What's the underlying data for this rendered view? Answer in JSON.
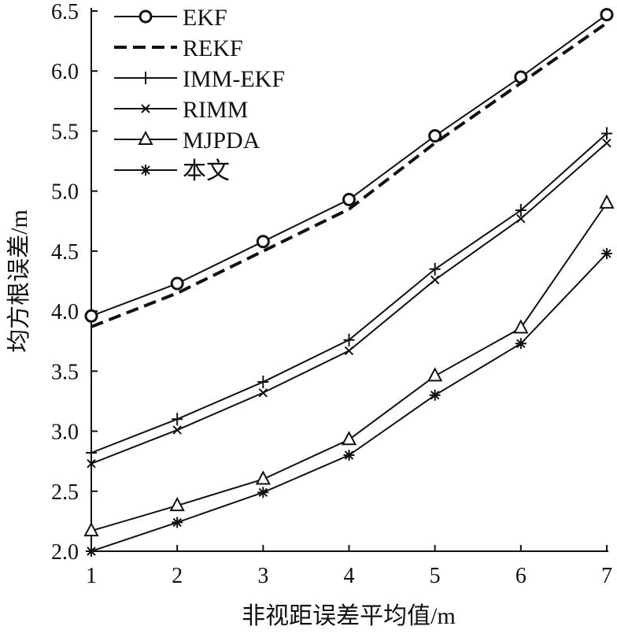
{
  "chart_data": {
    "type": "line",
    "title": "",
    "xlabel": "非视距误差平均值/m",
    "ylabel": "均方根误差/m",
    "x": [
      1,
      2,
      3,
      4,
      5,
      6,
      7
    ],
    "xlim": [
      1,
      7
    ],
    "ylim": [
      2.0,
      6.5
    ],
    "xticks": [
      "1",
      "2",
      "3",
      "4",
      "5",
      "6",
      "7"
    ],
    "yticks": [
      "2.0",
      "2.5",
      "3.0",
      "3.5",
      "4.0",
      "4.5",
      "5.0",
      "5.5",
      "6.0",
      "6.5"
    ],
    "grid": false,
    "legend_position": "top-left",
    "series": [
      {
        "name": "EKF",
        "marker": "circle",
        "dash": false,
        "values": [
          3.96,
          4.23,
          4.58,
          4.93,
          5.46,
          5.95,
          6.47
        ]
      },
      {
        "name": "REKF",
        "marker": "none",
        "dash": true,
        "values": [
          3.87,
          4.15,
          4.5,
          4.85,
          5.4,
          5.9,
          6.4
        ]
      },
      {
        "name": "IMM-EKF",
        "marker": "plus",
        "dash": false,
        "values": [
          2.82,
          3.1,
          3.41,
          3.76,
          4.35,
          4.84,
          5.48
        ]
      },
      {
        "name": "RIMM",
        "marker": "x",
        "dash": false,
        "values": [
          2.73,
          3.01,
          3.32,
          3.67,
          4.26,
          4.77,
          5.4
        ]
      },
      {
        "name": "MJPDA",
        "marker": "triangle",
        "dash": false,
        "values": [
          2.17,
          2.38,
          2.6,
          2.93,
          3.46,
          3.86,
          4.9
        ]
      },
      {
        "name": "本文",
        "marker": "asterisk",
        "dash": false,
        "values": [
          2.0,
          2.24,
          2.49,
          2.8,
          3.3,
          3.73,
          4.48
        ]
      }
    ]
  }
}
